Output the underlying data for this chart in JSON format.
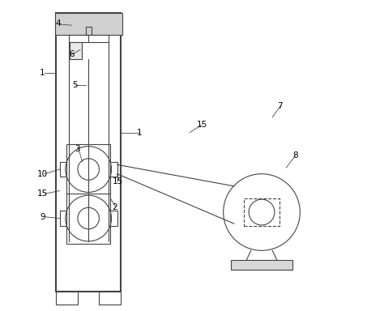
{
  "bg_color": "#ffffff",
  "line_color": "#444444",
  "line_width": 0.8,
  "thick_line": 1.5,
  "fig_width": 4.53,
  "fig_height": 3.84,
  "labels": {
    "4": [
      0.09,
      0.93,
      "4"
    ],
    "1a": [
      0.04,
      0.77,
      "1"
    ],
    "6": [
      0.135,
      0.83,
      "6"
    ],
    "5": [
      0.145,
      0.73,
      "5"
    ],
    "3": [
      0.155,
      0.52,
      "3"
    ],
    "10": [
      0.04,
      0.44,
      "10"
    ],
    "15b": [
      0.04,
      0.375,
      "15"
    ],
    "9": [
      0.04,
      0.3,
      "9"
    ],
    "15a": [
      0.285,
      0.415,
      "15"
    ],
    "2": [
      0.275,
      0.33,
      "2"
    ],
    "1b": [
      0.355,
      0.575,
      "1"
    ],
    "15c": [
      0.56,
      0.6,
      "15"
    ],
    "7": [
      0.815,
      0.66,
      "7"
    ],
    "8": [
      0.865,
      0.5,
      "8"
    ]
  }
}
